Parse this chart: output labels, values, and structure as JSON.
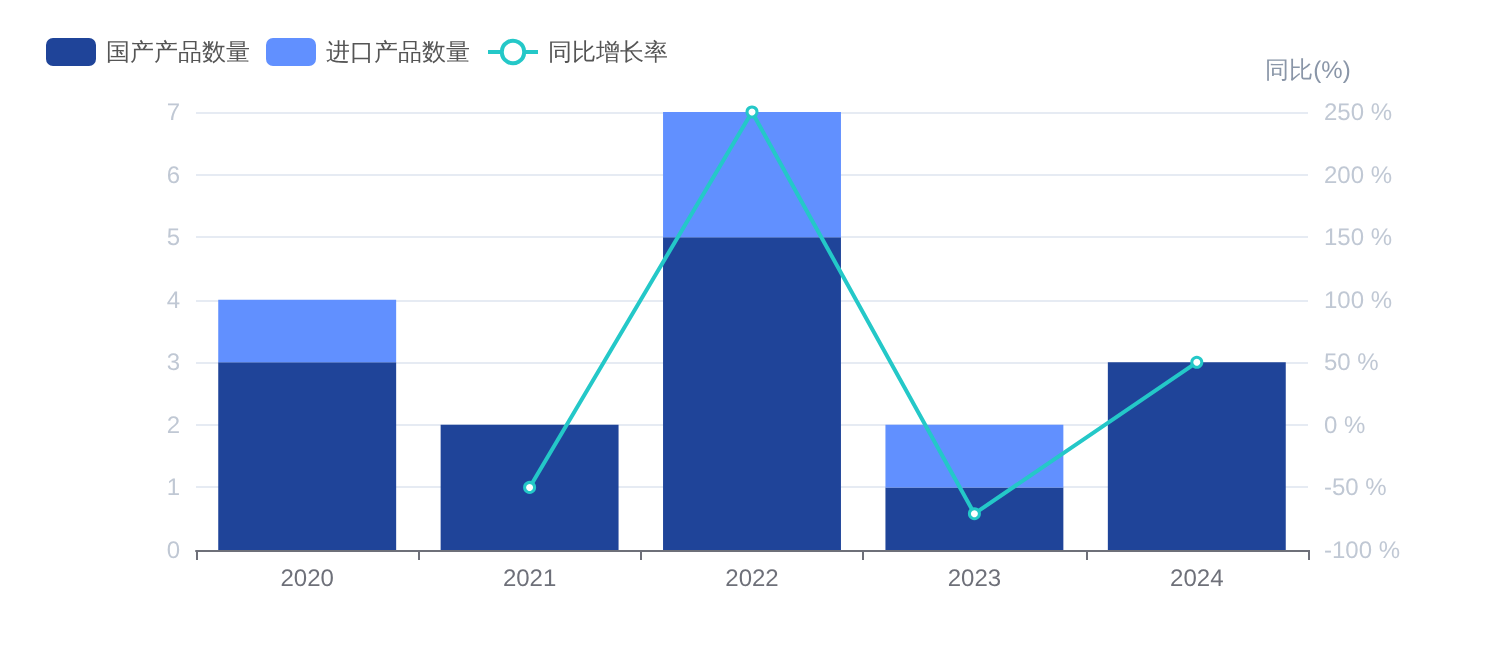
{
  "chart_data": {
    "type": "bar",
    "stacked": true,
    "y2label": "同比(%)",
    "categories": [
      "2020",
      "2021",
      "2022",
      "2023",
      "2024"
    ],
    "series": [
      {
        "name": "国产产品数量",
        "color": "#1f4499",
        "values": [
          3,
          2,
          5,
          1,
          3
        ]
      },
      {
        "name": "进口产品数量",
        "color": "#6190ff",
        "values": [
          1,
          0,
          2,
          1,
          0
        ]
      },
      {
        "name": "同比增长率",
        "type": "line",
        "axis": "y2",
        "color": "#24c8c8",
        "marker": "circle",
        "values": [
          null,
          -50,
          250,
          -71,
          50
        ]
      }
    ],
    "ylim": [
      0,
      7
    ],
    "yticks": [
      0,
      1,
      2,
      3,
      4,
      5,
      6,
      7
    ],
    "y2lim": [
      -100,
      250
    ],
    "y2ticks": [
      {
        "value": -100,
        "label": "-100 %"
      },
      {
        "value": -50,
        "label": "-50 %"
      },
      {
        "value": 0,
        "label": "0 %"
      },
      {
        "value": 50,
        "label": "50 %"
      },
      {
        "value": 100,
        "label": "100 %"
      },
      {
        "value": 150,
        "label": "150 %"
      },
      {
        "value": 200,
        "label": "200 %"
      },
      {
        "value": 250,
        "label": "250 %"
      }
    ],
    "grid": "y",
    "legend": "top left"
  }
}
